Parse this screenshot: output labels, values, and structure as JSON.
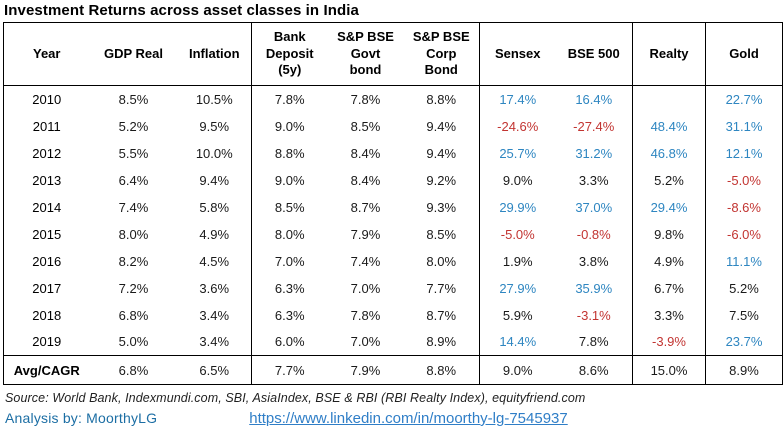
{
  "title": "Investment Returns across asset classes in India",
  "colors": {
    "positive": "#2e86c1",
    "negative": "#c23431",
    "analysis": "#1c6ea4",
    "link": "#2f7ec7"
  },
  "table": {
    "header_display": [
      "Year",
      "GDP Real",
      "Inflation",
      "Bank\nDeposit\n(5y)",
      "S&P BSE\nGovt\nbond",
      "S&P BSE\nCorp\nBond",
      "Sensex",
      "BSE 500",
      "Realty",
      "Gold"
    ],
    "group_end_columns": [
      2,
      5,
      7,
      8
    ]
  },
  "chart_data": {
    "type": "table",
    "title": "Investment Returns across asset classes in India",
    "columns": [
      "Year",
      "GDP Real",
      "Inflation",
      "Bank Deposit (5y)",
      "S&P BSE Govt bond",
      "S&P BSE Corp Bond",
      "Sensex",
      "BSE 500",
      "Realty",
      "Gold"
    ],
    "rows": [
      {
        "label": "2010",
        "total": false,
        "values": [
          "8.5%",
          "10.5%",
          "7.8%",
          "7.8%",
          "8.8%",
          "17.4%",
          "16.4%",
          "",
          "22.7%"
        ]
      },
      {
        "label": "2011",
        "total": false,
        "values": [
          "5.2%",
          "9.5%",
          "9.0%",
          "8.5%",
          "9.4%",
          "-24.6%",
          "-27.4%",
          "48.4%",
          "31.1%"
        ]
      },
      {
        "label": "2012",
        "total": false,
        "values": [
          "5.5%",
          "10.0%",
          "8.8%",
          "8.4%",
          "9.4%",
          "25.7%",
          "31.2%",
          "46.8%",
          "12.1%"
        ]
      },
      {
        "label": "2013",
        "total": false,
        "values": [
          "6.4%",
          "9.4%",
          "9.0%",
          "8.4%",
          "9.2%",
          "9.0%",
          "3.3%",
          "5.2%",
          "-5.0%"
        ]
      },
      {
        "label": "2014",
        "total": false,
        "values": [
          "7.4%",
          "5.8%",
          "8.5%",
          "8.7%",
          "9.3%",
          "29.9%",
          "37.0%",
          "29.4%",
          "-8.6%"
        ]
      },
      {
        "label": "2015",
        "total": false,
        "values": [
          "8.0%",
          "4.9%",
          "8.0%",
          "7.9%",
          "8.5%",
          "-5.0%",
          "-0.8%",
          "9.8%",
          "-6.0%"
        ]
      },
      {
        "label": "2016",
        "total": false,
        "values": [
          "8.2%",
          "4.5%",
          "7.0%",
          "7.4%",
          "8.0%",
          "1.9%",
          "3.8%",
          "4.9%",
          "11.1%"
        ]
      },
      {
        "label": "2017",
        "total": false,
        "values": [
          "7.2%",
          "3.6%",
          "6.3%",
          "7.0%",
          "7.7%",
          "27.9%",
          "35.9%",
          "6.7%",
          "5.2%"
        ]
      },
      {
        "label": "2018",
        "total": false,
        "values": [
          "6.8%",
          "3.4%",
          "6.3%",
          "7.8%",
          "8.7%",
          "5.9%",
          "-3.1%",
          "3.3%",
          "7.5%"
        ]
      },
      {
        "label": "2019",
        "total": false,
        "values": [
          "5.0%",
          "3.4%",
          "6.0%",
          "7.0%",
          "8.9%",
          "14.4%",
          "7.8%",
          "-3.9%",
          "23.7%"
        ]
      },
      {
        "label": "Avg/CAGR",
        "total": true,
        "values": [
          "6.8%",
          "6.5%",
          "7.7%",
          "7.9%",
          "8.8%",
          "9.0%",
          "8.6%",
          "15.0%",
          "8.9%"
        ]
      }
    ],
    "value_colors": [
      [
        "",
        "",
        "",
        "",
        "",
        "pos",
        "pos",
        "",
        "pos"
      ],
      [
        "",
        "",
        "",
        "",
        "",
        "neg",
        "neg",
        "pos",
        "pos"
      ],
      [
        "",
        "",
        "",
        "",
        "",
        "pos",
        "pos",
        "pos",
        "pos"
      ],
      [
        "",
        "",
        "",
        "",
        "",
        "",
        "",
        "",
        "neg"
      ],
      [
        "",
        "",
        "",
        "",
        "",
        "pos",
        "pos",
        "pos",
        "neg"
      ],
      [
        "",
        "",
        "",
        "",
        "",
        "neg",
        "neg",
        "",
        "neg"
      ],
      [
        "",
        "",
        "",
        "",
        "",
        "",
        "",
        "",
        "pos"
      ],
      [
        "",
        "",
        "",
        "",
        "",
        "pos",
        "pos",
        "",
        ""
      ],
      [
        "",
        "",
        "",
        "",
        "",
        "",
        "neg",
        "",
        ""
      ],
      [
        "",
        "",
        "",
        "",
        "",
        "pos",
        "",
        "neg",
        "pos"
      ],
      [
        "",
        "",
        "",
        "",
        "",
        "",
        "",
        "",
        ""
      ]
    ]
  },
  "footer": {
    "source": "Source: World Bank,  Indexmundi.com, SBI, AsiaIndex, BSE & RBI (RBI Realty Index), equityfriend.com",
    "analysis": "Analysis by: MoorthyLG",
    "link": "https://www.linkedin.com/in/moorthy-lg-7545937"
  }
}
